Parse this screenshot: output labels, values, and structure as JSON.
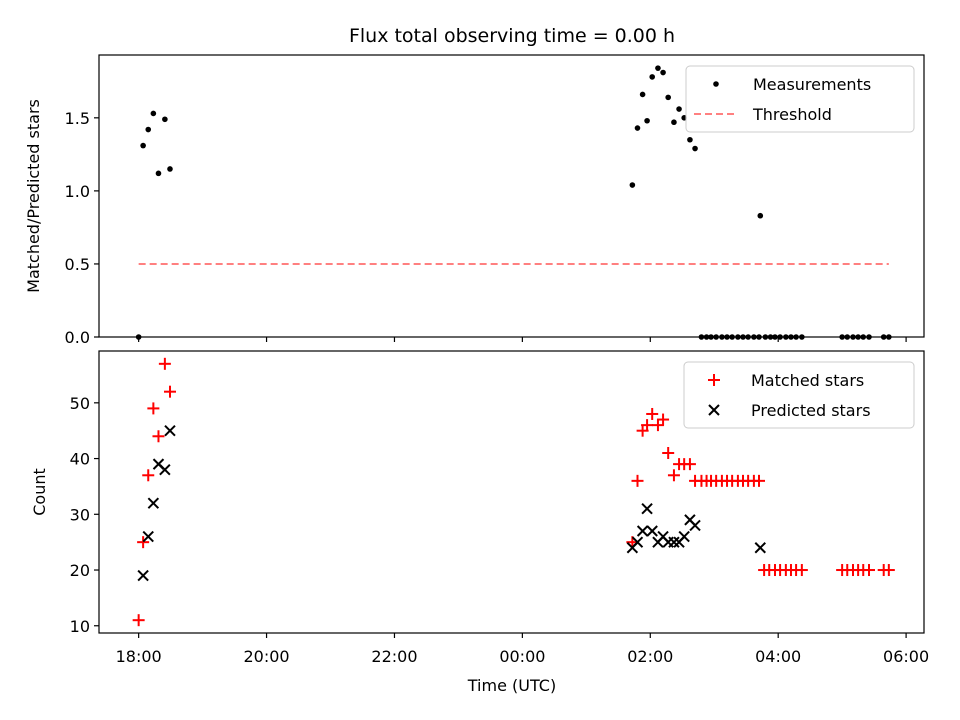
{
  "chart_data": {
    "type": "scatter",
    "title": "Flux total observing time = 0.00 h",
    "xlabel": "Time (UTC)",
    "x_unit": "hours",
    "xlim": [
      -0.62,
      12.28
    ],
    "x_ticks": [
      {
        "value": 0,
        "label": "18:00"
      },
      {
        "value": 2,
        "label": "20:00"
      },
      {
        "value": 4,
        "label": "22:00"
      },
      {
        "value": 6,
        "label": "00:00"
      },
      {
        "value": 8,
        "label": "02:00"
      },
      {
        "value": 10,
        "label": "04:00"
      },
      {
        "value": 12,
        "label": "06:00"
      }
    ],
    "colors": {
      "measurements": "#000000",
      "threshold": "#ff8080",
      "matched": "#ff0000",
      "predicted": "#000000"
    },
    "panels": [
      {
        "id": "ratio",
        "ylabel": "Matched/Predicted stars",
        "ylim": [
          0,
          1.93
        ],
        "y_ticks": [
          {
            "value": 0,
            "label": "0.0"
          },
          {
            "value": 0.5,
            "label": "0.5"
          },
          {
            "value": 1.0,
            "label": "1.0"
          },
          {
            "value": 1.5,
            "label": "1.5"
          }
        ],
        "legend_position": "top-right",
        "series": [
          {
            "name": "Measurements",
            "marker": "dot",
            "color": "#000000",
            "points": [
              [
                0.0,
                0.0
              ],
              [
                0.07,
                1.31
              ],
              [
                0.15,
                1.42
              ],
              [
                0.23,
                1.53
              ],
              [
                0.31,
                1.12
              ],
              [
                0.41,
                1.49
              ],
              [
                0.49,
                1.15
              ],
              [
                7.72,
                1.04
              ],
              [
                7.8,
                1.43
              ],
              [
                7.88,
                1.66
              ],
              [
                7.95,
                1.48
              ],
              [
                8.03,
                1.78
              ],
              [
                8.12,
                1.84
              ],
              [
                8.2,
                1.81
              ],
              [
                8.28,
                1.64
              ],
              [
                8.37,
                1.47
              ],
              [
                8.45,
                1.56
              ],
              [
                8.53,
                1.5
              ],
              [
                8.62,
                1.35
              ],
              [
                8.7,
                1.29
              ],
              [
                8.8,
                0.0
              ],
              [
                8.88,
                0.0
              ],
              [
                8.95,
                0.0
              ],
              [
                9.03,
                0.0
              ],
              [
                9.12,
                0.0
              ],
              [
                9.2,
                0.0
              ],
              [
                9.28,
                0.0
              ],
              [
                9.37,
                0.0
              ],
              [
                9.45,
                0.0
              ],
              [
                9.53,
                0.0
              ],
              [
                9.62,
                0.0
              ],
              [
                9.7,
                0.0
              ],
              [
                9.72,
                0.83
              ],
              [
                9.8,
                0.0
              ],
              [
                9.88,
                0.0
              ],
              [
                9.95,
                0.0
              ],
              [
                10.03,
                0.0
              ],
              [
                10.12,
                0.0
              ],
              [
                10.2,
                0.0
              ],
              [
                10.28,
                0.0
              ],
              [
                10.37,
                0.0
              ],
              [
                11.0,
                0.0
              ],
              [
                11.08,
                0.0
              ],
              [
                11.17,
                0.0
              ],
              [
                11.25,
                0.0
              ],
              [
                11.33,
                0.0
              ],
              [
                11.42,
                0.0
              ],
              [
                11.65,
                0.0
              ],
              [
                11.73,
                0.0
              ]
            ]
          },
          {
            "name": "Threshold",
            "marker": "dashed-line",
            "color": "#ff8080",
            "x": [
              0.0,
              11.73
            ],
            "y": [
              0.5,
              0.5
            ]
          }
        ]
      },
      {
        "id": "counts",
        "ylabel": "Count",
        "ylim": [
          8.7,
          59.3
        ],
        "y_ticks": [
          {
            "value": 10,
            "label": "10"
          },
          {
            "value": 20,
            "label": "20"
          },
          {
            "value": 30,
            "label": "30"
          },
          {
            "value": 40,
            "label": "40"
          },
          {
            "value": 50,
            "label": "50"
          }
        ],
        "legend_position": "top-right",
        "series": [
          {
            "name": "Matched stars",
            "marker": "plus",
            "color": "#ff0000",
            "points": [
              [
                0.0,
                11
              ],
              [
                0.07,
                25
              ],
              [
                0.15,
                37
              ],
              [
                0.23,
                49
              ],
              [
                0.31,
                44
              ],
              [
                0.41,
                57
              ],
              [
                0.49,
                52
              ],
              [
                7.72,
                25
              ],
              [
                7.8,
                36
              ],
              [
                7.88,
                45
              ],
              [
                7.95,
                46
              ],
              [
                8.03,
                48
              ],
              [
                8.12,
                46
              ],
              [
                8.2,
                47
              ],
              [
                8.28,
                41
              ],
              [
                8.37,
                37
              ],
              [
                8.45,
                39
              ],
              [
                8.53,
                39
              ],
              [
                8.62,
                39
              ],
              [
                8.7,
                36
              ],
              [
                8.8,
                36
              ],
              [
                8.88,
                36
              ],
              [
                8.95,
                36
              ],
              [
                9.03,
                36
              ],
              [
                9.12,
                36
              ],
              [
                9.2,
                36
              ],
              [
                9.28,
                36
              ],
              [
                9.37,
                36
              ],
              [
                9.45,
                36
              ],
              [
                9.53,
                36
              ],
              [
                9.62,
                36
              ],
              [
                9.7,
                36
              ],
              [
                9.78,
                20
              ],
              [
                9.86,
                20
              ],
              [
                9.95,
                20
              ],
              [
                10.03,
                20
              ],
              [
                10.12,
                20
              ],
              [
                10.2,
                20
              ],
              [
                10.28,
                20
              ],
              [
                10.37,
                20
              ],
              [
                11.0,
                20
              ],
              [
                11.08,
                20
              ],
              [
                11.17,
                20
              ],
              [
                11.25,
                20
              ],
              [
                11.33,
                20
              ],
              [
                11.42,
                20
              ],
              [
                11.65,
                20
              ],
              [
                11.73,
                20
              ]
            ]
          },
          {
            "name": "Predicted stars",
            "marker": "x",
            "color": "#000000",
            "points": [
              [
                0.07,
                19
              ],
              [
                0.15,
                26
              ],
              [
                0.23,
                32
              ],
              [
                0.31,
                39
              ],
              [
                0.41,
                38
              ],
              [
                0.49,
                45
              ],
              [
                7.72,
                24
              ],
              [
                7.8,
                25
              ],
              [
                7.88,
                27
              ],
              [
                7.95,
                31
              ],
              [
                8.03,
                27
              ],
              [
                8.12,
                25
              ],
              [
                8.2,
                26
              ],
              [
                8.28,
                25
              ],
              [
                8.37,
                25
              ],
              [
                8.45,
                25
              ],
              [
                8.53,
                26
              ],
              [
                8.62,
                29
              ],
              [
                8.7,
                28
              ],
              [
                9.72,
                24
              ]
            ]
          }
        ]
      }
    ]
  }
}
